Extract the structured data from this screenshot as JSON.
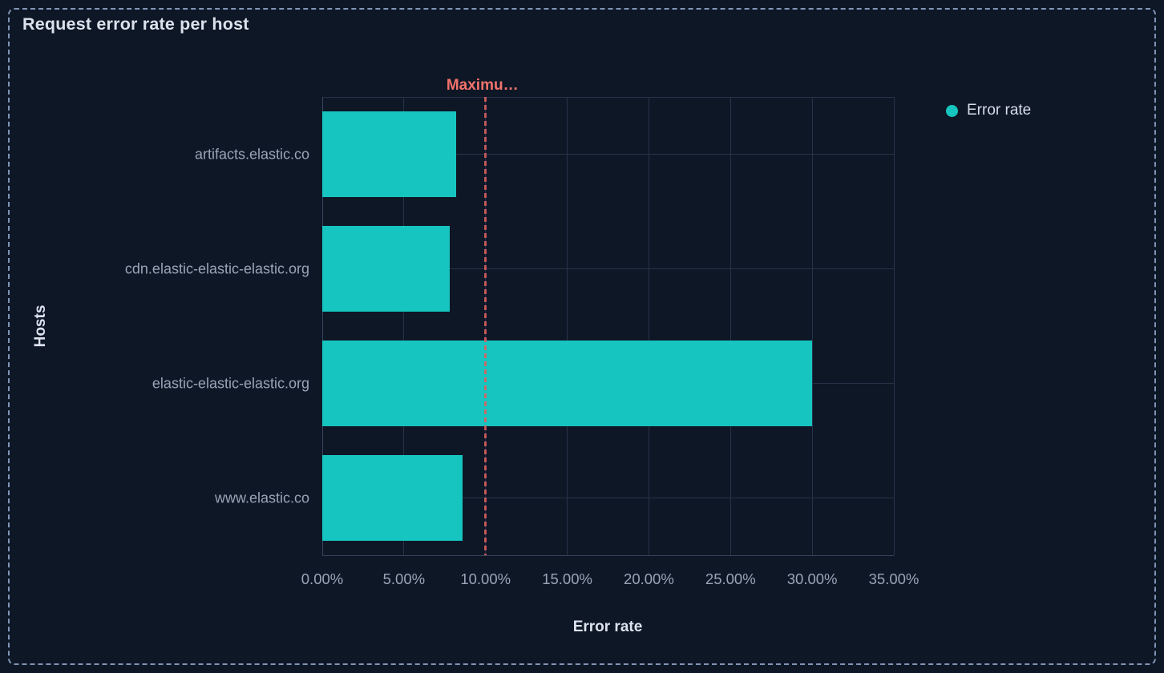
{
  "panel": {
    "title": "Request error rate per host"
  },
  "legend": {
    "items": [
      {
        "label": "Error rate",
        "color": "#16c5c0"
      }
    ]
  },
  "chart_data": {
    "type": "bar",
    "orientation": "horizontal",
    "title": "Request error rate per host",
    "xlabel": "Error rate",
    "ylabel": "Hosts",
    "categories": [
      "artifacts.elastic.co",
      "cdn.elastic-elastic-elastic.org",
      "elastic-elastic-elastic.org",
      "www.elastic.co"
    ],
    "series": [
      {
        "name": "Error rate",
        "color": "#16c5c0",
        "values": [
          8.2,
          7.8,
          30,
          8.6
        ]
      }
    ],
    "xlim": [
      0,
      35
    ],
    "x_ticks": [
      {
        "value": 0,
        "label": "0.00%"
      },
      {
        "value": 5,
        "label": "5.00%"
      },
      {
        "value": 10,
        "label": "10.00%"
      },
      {
        "value": 15,
        "label": "15.00%"
      },
      {
        "value": 20,
        "label": "20.00%"
      },
      {
        "value": 25,
        "label": "25.00%"
      },
      {
        "value": 30,
        "label": "30.00%"
      },
      {
        "value": 35,
        "label": "35.00%"
      }
    ],
    "grid": true,
    "legend_position": "right",
    "annotations": [
      {
        "type": "vline",
        "value": 10,
        "label": "Maximu…",
        "style": "dashed",
        "line_color": "#e05e5e",
        "label_color": "#f4736c"
      }
    ]
  },
  "colors": {
    "background": "#0e1726",
    "panel_border": "#8095b5",
    "title_text": "#dbe2ec",
    "axis_title_text": "#dce3ee",
    "tick_label_text": "#99a4b7",
    "gridline": "#263349",
    "axis_line": "#36435e",
    "bar": "#16c5c0",
    "legend_text": "#d6dde8",
    "annotation_line": "#e05e5e",
    "annotation_label": "#f4736c"
  }
}
